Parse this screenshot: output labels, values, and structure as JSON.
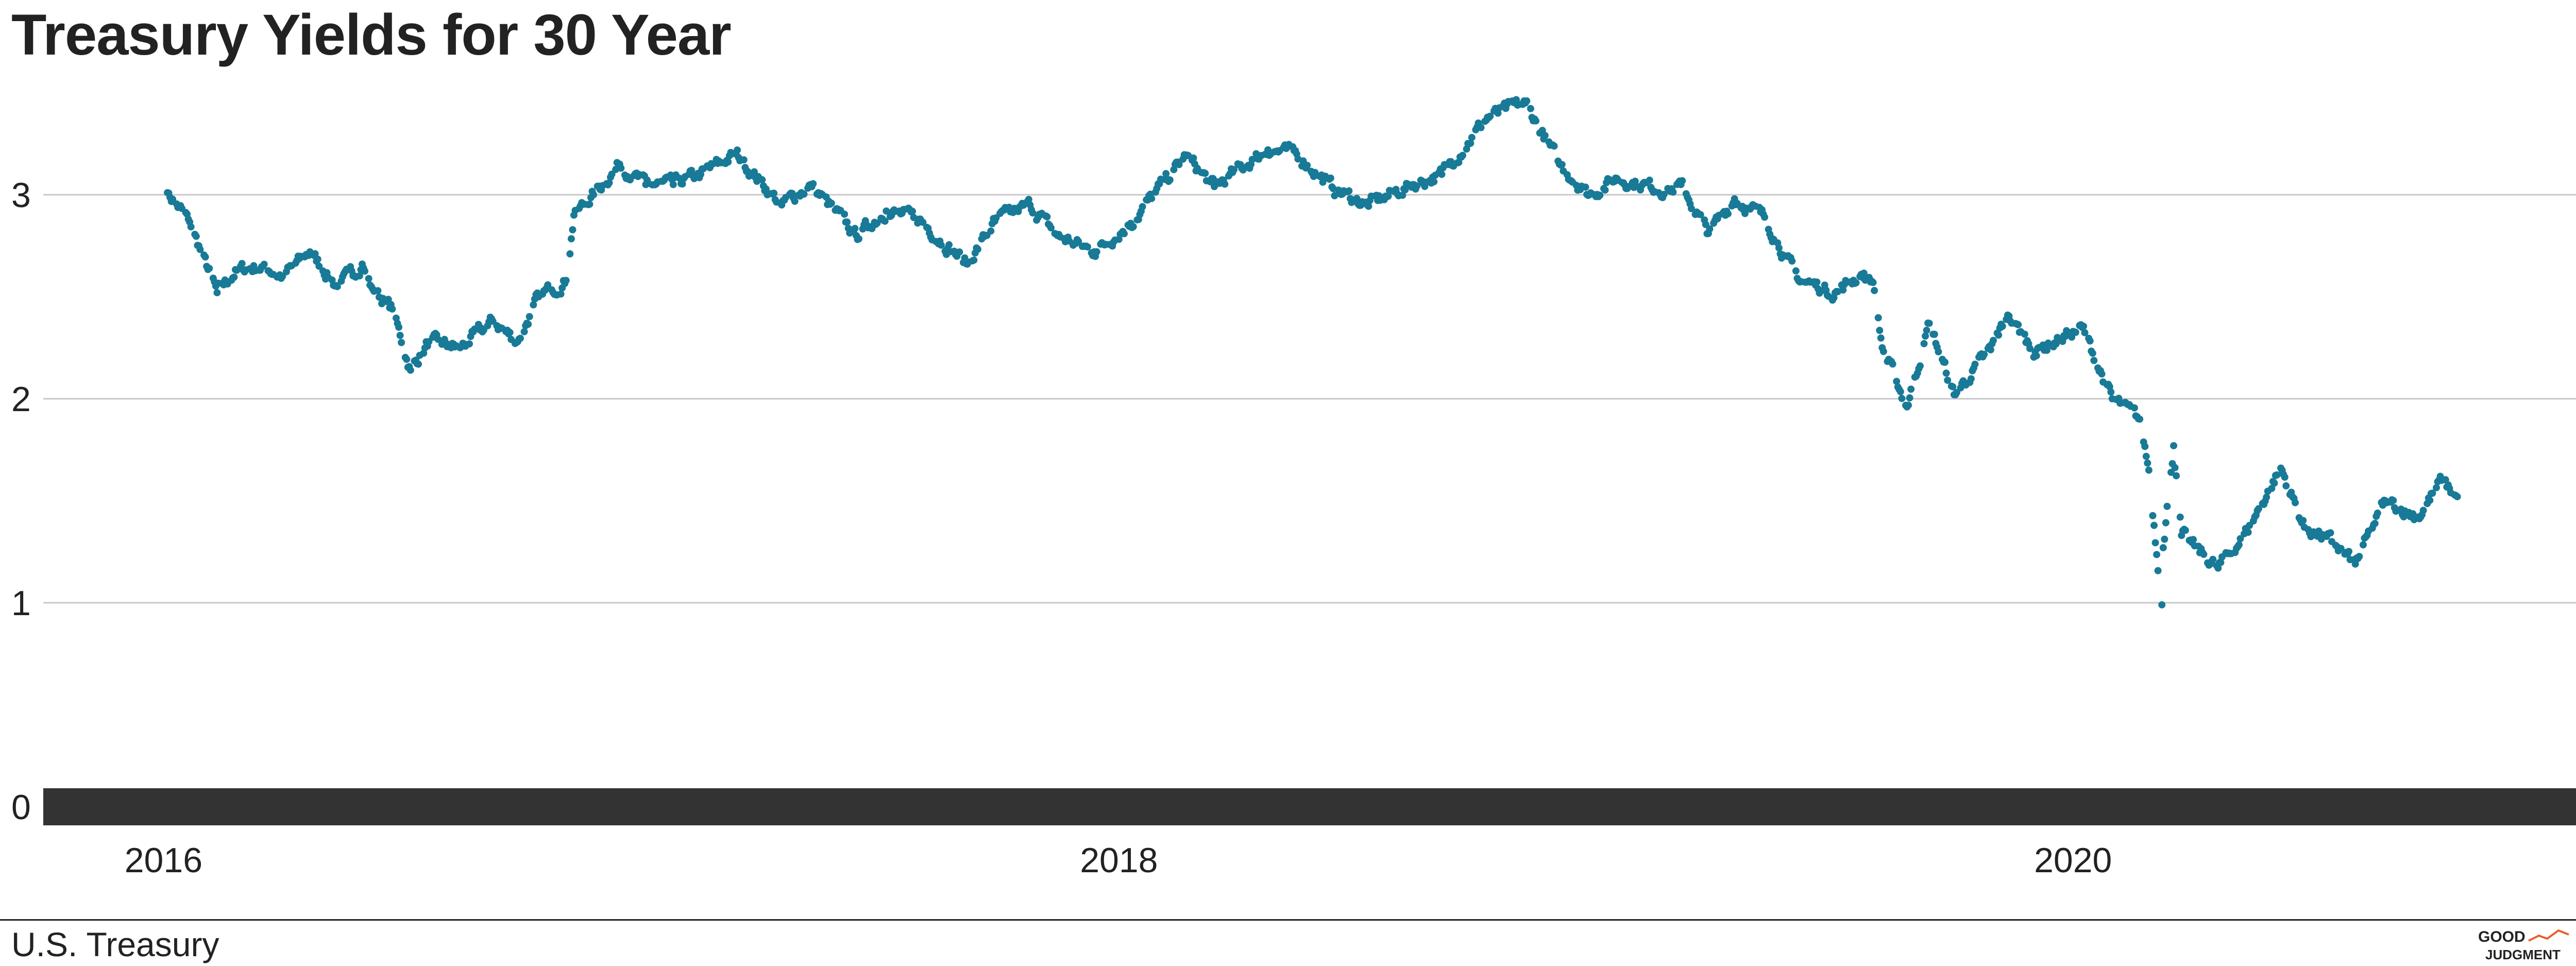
{
  "header": {
    "title": "Treasury Yields for 30 Year"
  },
  "footer": {
    "source": "U.S. Treasury"
  },
  "logo": {
    "line1": "GOOD",
    "line2": "JUDGMENT",
    "mark": "®",
    "accent_color": "#e8602c"
  },
  "chart_data": {
    "type": "scatter",
    "title": "Treasury Yields for 30 Year",
    "xlabel": "",
    "ylabel": "",
    "x_ticks": [
      "2016",
      "2018",
      "2020"
    ],
    "y_ticks": [
      0,
      1,
      2,
      3
    ],
    "xlim": [
      "2015-10-01",
      "2021-03-31"
    ],
    "ylim": [
      0,
      3.5
    ],
    "grid": true,
    "legend": "none",
    "point_color": "#187a96",
    "baseline_color": "#333333",
    "series_anchors": [
      [
        "2016-01-04",
        3.01
      ],
      [
        "2016-01-20",
        2.88
      ],
      [
        "2016-02-11",
        2.52
      ],
      [
        "2016-02-26",
        2.63
      ],
      [
        "2016-03-17",
        2.65
      ],
      [
        "2016-04-01",
        2.6
      ],
      [
        "2016-04-22",
        2.72
      ],
      [
        "2016-05-13",
        2.55
      ],
      [
        "2016-06-01",
        2.66
      ],
      [
        "2016-06-08",
        2.55
      ],
      [
        "2016-06-24",
        2.44
      ],
      [
        "2016-07-08",
        2.14
      ],
      [
        "2016-07-22",
        2.28
      ],
      [
        "2016-08-15",
        2.25
      ],
      [
        "2016-09-09",
        2.38
      ],
      [
        "2016-09-28",
        2.28
      ],
      [
        "2016-10-14",
        2.5
      ],
      [
        "2016-11-04",
        2.58
      ],
      [
        "2016-11-10",
        2.9
      ],
      [
        "2016-11-25",
        3.0
      ],
      [
        "2016-12-15",
        3.15
      ],
      [
        "2017-01-04",
        3.05
      ],
      [
        "2017-01-25",
        3.05
      ],
      [
        "2017-02-15",
        3.1
      ],
      [
        "2017-03-14",
        3.2
      ],
      [
        "2017-04-18",
        2.95
      ],
      [
        "2017-05-10",
        3.05
      ],
      [
        "2017-06-14",
        2.8
      ],
      [
        "2017-07-07",
        2.92
      ],
      [
        "2017-08-01",
        2.88
      ],
      [
        "2017-09-07",
        2.66
      ],
      [
        "2017-09-28",
        2.87
      ],
      [
        "2017-10-25",
        2.95
      ],
      [
        "2017-11-15",
        2.8
      ],
      [
        "2017-12-13",
        2.72
      ],
      [
        "2018-01-10",
        2.86
      ],
      [
        "2018-02-21",
        3.19
      ],
      [
        "2018-03-15",
        3.04
      ],
      [
        "2018-04-25",
        3.22
      ],
      [
        "2018-05-17",
        3.2
      ],
      [
        "2018-06-14",
        3.03
      ],
      [
        "2018-07-10",
        2.95
      ],
      [
        "2018-08-14",
        3.05
      ],
      [
        "2018-09-05",
        3.1
      ],
      [
        "2018-10-10",
        3.38
      ],
      [
        "2018-11-08",
        3.45
      ],
      [
        "2018-12-04",
        3.15
      ],
      [
        "2018-12-27",
        3.0
      ],
      [
        "2019-01-17",
        3.08
      ],
      [
        "2019-02-26",
        3.02
      ],
      [
        "2019-03-07",
        3.05
      ],
      [
        "2019-03-28",
        2.81
      ],
      [
        "2019-04-17",
        2.98
      ],
      [
        "2019-05-10",
        2.89
      ],
      [
        "2019-06-04",
        2.59
      ],
      [
        "2019-07-03",
        2.52
      ],
      [
        "2019-07-23",
        2.61
      ],
      [
        "2019-08-01",
        2.57
      ],
      [
        "2019-08-08",
        2.25
      ],
      [
        "2019-08-27",
        1.96
      ],
      [
        "2019-09-13",
        2.37
      ],
      [
        "2019-10-02",
        2.02
      ],
      [
        "2019-10-30",
        2.24
      ],
      [
        "2019-11-12",
        2.41
      ],
      [
        "2019-12-03",
        2.23
      ],
      [
        "2020-01-08",
        2.35
      ],
      [
        "2020-01-31",
        2.0
      ],
      [
        "2020-02-21",
        1.9
      ],
      [
        "2020-02-28",
        1.65
      ],
      [
        "2020-03-09",
        0.99
      ],
      [
        "2020-03-10",
        1.27
      ],
      [
        "2020-03-18",
        1.77
      ],
      [
        "2020-03-24",
        1.33
      ],
      [
        "2020-04-21",
        1.17
      ],
      [
        "2020-05-13",
        1.35
      ],
      [
        "2020-06-08",
        1.66
      ],
      [
        "2020-06-26",
        1.37
      ],
      [
        "2020-07-17",
        1.3
      ],
      [
        "2020-08-04",
        1.19
      ],
      [
        "2020-08-27",
        1.5
      ],
      [
        "2020-09-21",
        1.42
      ],
      [
        "2020-10-09",
        1.6
      ],
      [
        "2020-10-21",
        1.52
      ]
    ]
  }
}
